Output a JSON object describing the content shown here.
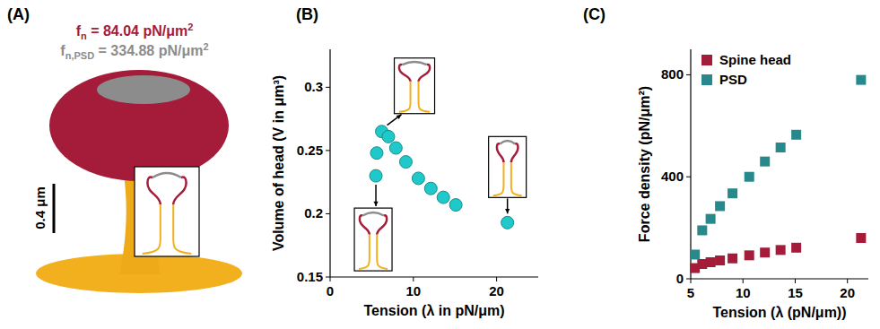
{
  "panel_a": {
    "panel_label": "(A)",
    "head_force": {
      "symbol": "f",
      "subscript": "n",
      "text": " = 84.04 pN/μm",
      "superscript": "2"
    },
    "psd_force": {
      "symbol": "f",
      "subscript": "n,PSD",
      "text": " = 334.88 pN/μm",
      "superscript": "2"
    },
    "scale_bar": "0.4 μm"
  },
  "chart_data": [
    {
      "type": "scatter",
      "panel_label": "(B)",
      "x_label": "Tension (λ in pN/μm)",
      "y_label": "Volume of head (V in μm³)",
      "x": [
        5.5,
        5.6,
        6.2,
        7.0,
        7.9,
        9.1,
        10.6,
        12.1,
        13.6,
        15.1,
        21.3
      ],
      "values": [
        0.23,
        0.248,
        0.265,
        0.261,
        0.252,
        0.241,
        0.228,
        0.22,
        0.213,
        0.207,
        0.193
      ],
      "color": "#20c9c9",
      "marker": "circle",
      "xlim": [
        0,
        25
      ],
      "xticks": [
        0,
        10,
        20
      ],
      "ylim": [
        0.15,
        0.33
      ],
      "yticks": [
        0.15,
        0.2,
        0.25,
        0.3
      ],
      "grid": false
    },
    {
      "type": "scatter",
      "panel_label": "(C)",
      "x_label": "Tension (λ (pN/μm))",
      "y_label": "Force density (pN/μm²)",
      "x": [
        5.4,
        6.1,
        6.9,
        7.8,
        9.0,
        10.6,
        12.1,
        13.6,
        15.1,
        21.3
      ],
      "series": [
        {
          "name": "Spine head",
          "color": "#a51c3a",
          "values": [
            42,
            58,
            65,
            72,
            80,
            92,
            103,
            113,
            122,
            160
          ]
        },
        {
          "name": "PSD",
          "color": "#27898b",
          "values": [
            95,
            190,
            235,
            285,
            335,
            400,
            460,
            515,
            565,
            780
          ]
        }
      ],
      "marker": "square",
      "legend": "top-left",
      "xlim": [
        5,
        22
      ],
      "xticks": [
        5,
        10,
        15,
        20
      ],
      "ylim": [
        0,
        900
      ],
      "yticks": [
        0,
        400,
        800
      ],
      "grid": false
    }
  ]
}
